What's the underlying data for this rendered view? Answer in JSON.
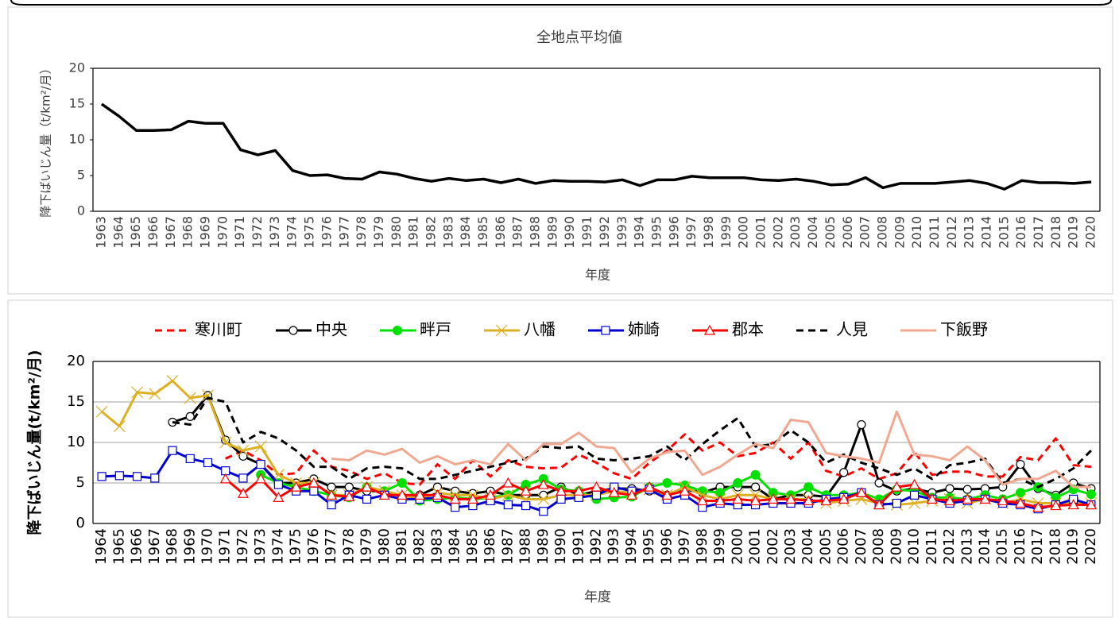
{
  "chart_data": [
    {
      "type": "line",
      "title": "全地点平均値",
      "y_label": "降下ばいじん量（t/km²/月）",
      "x_label": "年度",
      "categories": [
        "1963",
        "1964",
        "1965",
        "1966",
        "1967",
        "1968",
        "1969",
        "1970",
        "1971",
        "1972",
        "1973",
        "1974",
        "1975",
        "1976",
        "1977",
        "1978",
        "1979",
        "1980",
        "1981",
        "1982",
        "1983",
        "1984",
        "1985",
        "1986",
        "1987",
        "1988",
        "1989",
        "1990",
        "1991",
        "1992",
        "1993",
        "1994",
        "1995",
        "1996",
        "1997",
        "1998",
        "1999",
        "2000",
        "2001",
        "2002",
        "2003",
        "2004",
        "2005",
        "2006",
        "2007",
        "2008",
        "2009",
        "2010",
        "2011",
        "2012",
        "2013",
        "2014",
        "2015",
        "2016",
        "2017",
        "2018",
        "2019",
        "2020"
      ],
      "values": [
        15.0,
        13.3,
        11.3,
        11.3,
        11.4,
        12.6,
        12.3,
        12.3,
        8.6,
        7.9,
        8.5,
        5.7,
        5.0,
        5.1,
        4.6,
        4.5,
        5.5,
        5.2,
        4.6,
        4.2,
        4.6,
        4.3,
        4.5,
        4.0,
        4.5,
        3.9,
        4.3,
        4.2,
        4.2,
        4.1,
        4.4,
        3.6,
        4.4,
        4.4,
        4.9,
        4.7,
        4.7,
        4.7,
        4.4,
        4.3,
        4.5,
        4.2,
        3.7,
        3.8,
        4.7,
        3.3,
        3.9,
        3.9,
        3.9,
        4.1,
        4.3,
        3.9,
        3.1,
        4.3,
        4.0,
        4.0,
        3.9,
        4.1
      ],
      "color": "#000000",
      "ylim": [
        0,
        20
      ],
      "yticks": [
        0,
        5,
        10,
        15,
        20
      ],
      "grid": false
    },
    {
      "type": "line",
      "y_label": "降下ばいじん量(t/km²/月)",
      "x_label": "年度",
      "legend": "top",
      "categories": [
        "1964",
        "1965",
        "1966",
        "1967",
        "1968",
        "1969",
        "1970",
        "1971",
        "1972",
        "1973",
        "1974",
        "1975",
        "1976",
        "1977",
        "1978",
        "1979",
        "1980",
        "1981",
        "1982",
        "1983",
        "1984",
        "1985",
        "1986",
        "1987",
        "1988",
        "1989",
        "1990",
        "1991",
        "1992",
        "1993",
        "1994",
        "1995",
        "1996",
        "1997",
        "1998",
        "1999",
        "2000",
        "2001",
        "2002",
        "2003",
        "2004",
        "2005",
        "2006",
        "2007",
        "2008",
        "2009",
        "2010",
        "2011",
        "2012",
        "2013",
        "2014",
        "2015",
        "2016",
        "2017",
        "2018",
        "2019",
        "2020"
      ],
      "ylim": [
        0,
        20
      ],
      "yticks": [
        0,
        5,
        10,
        15,
        20
      ],
      "grid": true,
      "series": [
        {
          "name": "寒川町",
          "color": "#ff0000",
          "dash": true,
          "marker": "none",
          "values": [
            null,
            null,
            null,
            null,
            null,
            null,
            null,
            8.0,
            9.0,
            7.8,
            6.0,
            6.2,
            9.0,
            7.0,
            6.5,
            5.5,
            6.2,
            5.0,
            4.8,
            7.3,
            5.5,
            7.8,
            5.8,
            7.8,
            7.0,
            6.8,
            6.9,
            8.5,
            7.5,
            6.2,
            5.5,
            7.5,
            9.0,
            11.0,
            9.0,
            10.0,
            8.3,
            8.7,
            10.0,
            8.0,
            10.0,
            6.5,
            5.8,
            6.8,
            5.5,
            6.2,
            8.8,
            6.0,
            6.4,
            6.4,
            5.8,
            5.8,
            8.2,
            7.8,
            10.5,
            7.2,
            7.0
          ]
        },
        {
          "name": "中央",
          "color": "#000000",
          "dash": false,
          "marker": "circle",
          "values": [
            null,
            null,
            null,
            null,
            12.5,
            13.2,
            15.8,
            10.3,
            8.3,
            7.3,
            5.0,
            5.0,
            5.5,
            4.5,
            4.5,
            4.0,
            4.0,
            3.3,
            3.5,
            4.5,
            4.0,
            3.7,
            4.0,
            3.5,
            3.5,
            3.5,
            4.5,
            3.5,
            4.0,
            4.3,
            4.3,
            4.0,
            3.5,
            4.2,
            3.8,
            4.5,
            4.5,
            4.5,
            3.0,
            3.5,
            3.5,
            3.3,
            6.3,
            12.2,
            5.0,
            4.0,
            4.3,
            3.8,
            4.3,
            4.2,
            4.3,
            4.5,
            7.3,
            4.3,
            3.5,
            5.0,
            4.3
          ]
        },
        {
          "name": "畔戸",
          "color": "#00e000",
          "dash": false,
          "marker": "dot",
          "values": [
            null,
            null,
            null,
            null,
            null,
            null,
            null,
            null,
            null,
            6.0,
            5.0,
            4.5,
            4.0,
            3.5,
            3.2,
            4.5,
            4.0,
            5.0,
            2.8,
            3.0,
            3.2,
            3.0,
            3.2,
            3.5,
            4.8,
            5.5,
            4.2,
            4.0,
            3.0,
            3.2,
            3.3,
            4.5,
            5.0,
            4.7,
            4.0,
            3.8,
            5.0,
            6.0,
            3.8,
            3.5,
            4.5,
            3.5,
            3.5,
            3.8,
            3.0,
            4.2,
            4.0,
            3.2,
            3.2,
            3.0,
            3.5,
            3.0,
            3.8,
            4.5,
            3.2,
            4.2,
            3.6
          ]
        },
        {
          "name": "八幡",
          "color": "#dcb020",
          "dash": false,
          "marker": "cross",
          "values": [
            13.8,
            12.0,
            16.2,
            16.0,
            17.6,
            15.5,
            15.8,
            10.0,
            9.0,
            9.5,
            6.0,
            5.0,
            5.0,
            3.5,
            3.5,
            4.5,
            4.0,
            3.5,
            3.0,
            3.8,
            3.5,
            3.5,
            3.0,
            3.5,
            3.0,
            3.0,
            3.5,
            3.5,
            3.5,
            4.0,
            3.8,
            4.2,
            3.5,
            4.5,
            3.5,
            3.0,
            3.5,
            3.5,
            3.0,
            3.0,
            3.0,
            2.5,
            2.8,
            3.0,
            2.5,
            2.3,
            2.5,
            2.8,
            3.0,
            2.5,
            3.0,
            2.5,
            3.0,
            2.5,
            2.5,
            2.5,
            2.5
          ]
        },
        {
          "name": "姉崎",
          "color": "#0000d0",
          "dash": false,
          "marker": "square",
          "values": [
            5.8,
            5.9,
            5.8,
            5.6,
            9.0,
            8.0,
            7.5,
            6.5,
            5.6,
            7.3,
            4.8,
            4.0,
            4.0,
            2.3,
            3.5,
            3.0,
            3.5,
            3.0,
            3.0,
            3.2,
            2.0,
            2.2,
            2.8,
            2.3,
            2.2,
            1.5,
            3.0,
            3.2,
            3.5,
            4.5,
            4.0,
            4.2,
            3.0,
            3.5,
            2.0,
            2.5,
            2.3,
            2.3,
            2.5,
            2.5,
            2.5,
            3.0,
            3.2,
            3.8,
            2.3,
            2.5,
            3.5,
            3.0,
            2.5,
            2.8,
            3.0,
            2.5,
            2.3,
            1.8,
            2.3,
            3.0,
            2.3
          ]
        },
        {
          "name": "郡本",
          "color": "#ff0000",
          "dash": false,
          "marker": "triangle",
          "values": [
            null,
            null,
            null,
            null,
            null,
            null,
            null,
            5.5,
            3.7,
            5.5,
            3.2,
            4.5,
            5.0,
            3.5,
            3.3,
            4.5,
            3.5,
            3.5,
            3.5,
            3.5,
            3.0,
            3.0,
            3.5,
            5.0,
            4.0,
            4.8,
            4.0,
            4.0,
            4.5,
            3.8,
            3.5,
            4.5,
            3.5,
            4.0,
            2.8,
            2.8,
            3.0,
            2.8,
            3.0,
            3.0,
            2.8,
            2.8,
            3.0,
            3.8,
            2.3,
            4.5,
            4.8,
            3.0,
            2.8,
            3.0,
            3.0,
            2.8,
            2.5,
            2.0,
            2.2,
            2.3,
            2.3
          ]
        },
        {
          "name": "人見",
          "color": "#000000",
          "dash": true,
          "marker": "none",
          "values": [
            null,
            null,
            null,
            null,
            12.5,
            12.2,
            15.5,
            15.0,
            10.0,
            11.3,
            10.5,
            9.0,
            7.0,
            7.0,
            5.5,
            6.8,
            7.0,
            6.8,
            5.5,
            5.5,
            6.0,
            6.5,
            7.0,
            7.5,
            8.0,
            9.5,
            9.3,
            9.5,
            8.0,
            7.8,
            8.0,
            8.3,
            9.5,
            7.8,
            9.8,
            11.5,
            13.0,
            9.5,
            9.8,
            11.5,
            10.0,
            7.5,
            8.5,
            7.5,
            6.8,
            6.0,
            6.8,
            5.5,
            7.2,
            7.5,
            8.0,
            5.0,
            5.5,
            4.5,
            5.5,
            6.8,
            9.0
          ]
        },
        {
          "name": "下飯野",
          "color": "#f0a890",
          "dash": false,
          "marker": "none",
          "values": [
            null,
            null,
            null,
            null,
            null,
            null,
            null,
            null,
            null,
            null,
            null,
            null,
            null,
            8.0,
            7.8,
            9.0,
            8.5,
            9.2,
            7.5,
            8.3,
            7.3,
            7.8,
            7.3,
            9.8,
            7.8,
            9.8,
            9.8,
            11.2,
            9.5,
            9.3,
            6.3,
            8.0,
            8.8,
            9.0,
            6.0,
            7.0,
            8.5,
            9.8,
            9.3,
            12.8,
            12.5,
            8.7,
            8.3,
            8.0,
            7.5,
            13.8,
            8.5,
            8.3,
            7.8,
            9.5,
            7.8,
            4.8,
            5.5,
            5.5,
            6.5,
            4.5,
            4.5
          ]
        }
      ]
    }
  ]
}
